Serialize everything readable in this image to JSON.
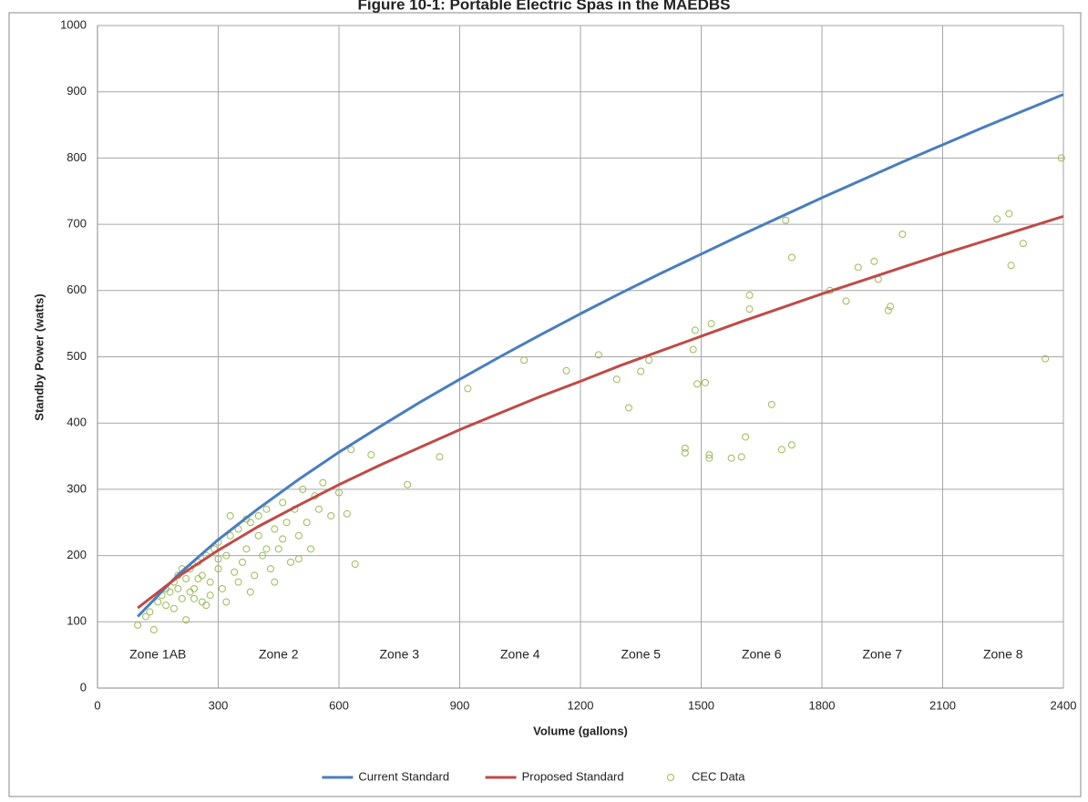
{
  "chart_data": {
    "type": "line",
    "title": "Figure 10-1: Portable Electric Spas in the MAEDBS",
    "x_label": "Volume (gallons)",
    "y_label": "Standby Power (watts)",
    "annotations": [
      "Zone 1AB",
      "Zone 2",
      "Zone 3",
      "Zone 4",
      "Zone 5",
      "Zone 6",
      "Zone 7",
      "Zone 8"
    ],
    "xlim": [
      0,
      2400
    ],
    "xticks": [
      0,
      300,
      600,
      900,
      1200,
      1500,
      1800,
      2100,
      2400
    ],
    "ylim": [
      0,
      1000
    ],
    "yticks": [
      0,
      100,
      200,
      300,
      400,
      500,
      600,
      700,
      800,
      900,
      1000
    ],
    "grid": true,
    "legend": "bottom",
    "series": [
      {
        "name": "Current Standard",
        "type": "line",
        "color": "#4a7ebb",
        "x": [
          100,
          200,
          300,
          400,
          500,
          600,
          700,
          800,
          900,
          1000,
          1100,
          1200,
          1300,
          1400,
          1500,
          1600,
          1700,
          1800,
          1900,
          2000,
          2100,
          2200,
          2300,
          2400
        ],
        "values": [
          108,
          171,
          224,
          271,
          315,
          356,
          394,
          431,
          466,
          500,
          533,
          565,
          596,
          626,
          655,
          684,
          712,
          740,
          767,
          794,
          820,
          846,
          871,
          896
        ]
      },
      {
        "name": "Proposed Standard",
        "type": "line",
        "color": "#be4b48",
        "x": [
          100,
          200,
          300,
          400,
          500,
          600,
          700,
          800,
          900,
          1000,
          1100,
          1200,
          1300,
          1400,
          1500,
          1600,
          1700,
          1800,
          1900,
          2000,
          2100,
          2200,
          2300,
          2400
        ],
        "values": [
          121,
          168,
          208,
          244,
          276,
          307,
          336,
          363,
          390,
          415,
          440,
          463,
          487,
          509,
          531,
          553,
          574,
          595,
          615,
          635,
          655,
          674,
          693,
          712
        ]
      },
      {
        "name": "CEC Data",
        "type": "scatter",
        "color": "#9bbb59",
        "x": [
          100,
          140,
          220,
          640,
          620,
          770,
          850,
          680,
          630,
          920,
          1060,
          1165,
          1245,
          1290,
          1320,
          1350,
          1370,
          1460,
          1460,
          1480,
          1485,
          1490,
          1510,
          1520,
          1520,
          1525,
          1575,
          1600,
          1610,
          1620,
          1620,
          1675,
          1700,
          1710,
          1725,
          1725,
          1820,
          1860,
          1890,
          1930,
          1940,
          1965,
          1970,
          2000,
          2235,
          2265,
          2270,
          2300,
          2355,
          2395,
          150,
          160,
          170,
          180,
          190,
          200,
          200,
          210,
          220,
          230,
          240,
          250,
          260,
          270,
          280,
          290,
          300,
          300,
          310,
          320,
          330,
          340,
          350,
          360,
          370,
          380,
          390,
          400,
          400,
          410,
          420,
          430,
          440,
          450,
          460,
          470,
          480,
          490,
          500,
          510,
          520,
          530,
          540,
          550,
          560,
          580,
          600,
          280,
          260,
          240,
          320,
          350,
          270,
          230,
          190,
          170,
          130,
          120,
          330,
          370,
          420,
          460,
          500,
          380,
          440,
          300,
          250,
          210
        ],
        "values": [
          95,
          88,
          103,
          187,
          263,
          307,
          349,
          352,
          360,
          452,
          495,
          479,
          503,
          466,
          423,
          478,
          495,
          362,
          355,
          511,
          540,
          459,
          461,
          352,
          347,
          550,
          347,
          349,
          379,
          572,
          593,
          428,
          360,
          706,
          650,
          367,
          600,
          584,
          635,
          644,
          617,
          570,
          576,
          685,
          708,
          716,
          638,
          671,
          497,
          800,
          130,
          140,
          150,
          145,
          160,
          170,
          150,
          135,
          165,
          180,
          150,
          190,
          170,
          200,
          160,
          210,
          180,
          220,
          150,
          200,
          230,
          175,
          240,
          190,
          210,
          250,
          170,
          230,
          260,
          200,
          270,
          180,
          240,
          210,
          280,
          250,
          190,
          270,
          230,
          300,
          250,
          210,
          290,
          270,
          310,
          260,
          295,
          140,
          130,
          135,
          130,
          160,
          125,
          145,
          120,
          125,
          115,
          108,
          260,
          255,
          210,
          225,
          195,
          145,
          160,
          195,
          165,
          180
        ]
      }
    ]
  }
}
